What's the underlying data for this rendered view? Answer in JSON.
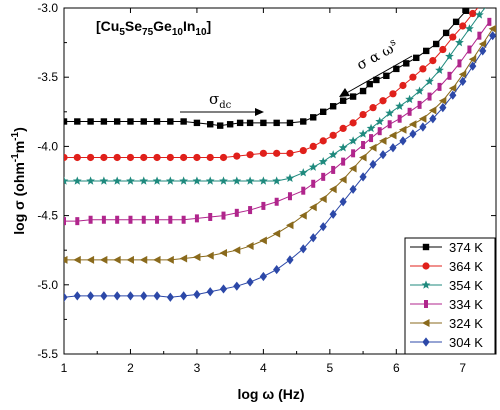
{
  "chart_data": {
    "type": "line",
    "title_parts": [
      "[Cu",
      "5",
      "Se",
      "75",
      "Ge",
      "10",
      "In",
      "10",
      "]"
    ],
    "xlabel": "log ω (Hz)",
    "ylabel_parts": [
      "log σ (ohm",
      "-1",
      "m",
      "-1",
      ")"
    ],
    "xlim": [
      1,
      7.5
    ],
    "ylim": [
      -5.5,
      -3.0
    ],
    "xticks": [
      "1",
      "2",
      "3",
      "4",
      "5",
      "6",
      "7"
    ],
    "yticks": [
      "-3.0",
      "-3.5",
      "-4.0",
      "-4.5",
      "-5.0",
      "-5.5"
    ],
    "annotations": {
      "sigma_dc": {
        "symbol": "σ",
        "subscript": "dc"
      },
      "power_law": {
        "text": "σ α ω",
        "superscript": "s"
      }
    },
    "legend_position": "bottom-right",
    "series": [
      {
        "name": "374 K",
        "color": "#000000",
        "marker": "square",
        "points": [
          [
            1.0,
            -3.82
          ],
          [
            1.2,
            -3.82
          ],
          [
            1.4,
            -3.82
          ],
          [
            1.6,
            -3.82
          ],
          [
            1.8,
            -3.82
          ],
          [
            2.0,
            -3.82
          ],
          [
            2.2,
            -3.82
          ],
          [
            2.4,
            -3.82
          ],
          [
            2.6,
            -3.82
          ],
          [
            2.8,
            -3.82
          ],
          [
            3.0,
            -3.83
          ],
          [
            3.2,
            -3.84
          ],
          [
            3.35,
            -3.85
          ],
          [
            3.5,
            -3.84
          ],
          [
            3.65,
            -3.83
          ],
          [
            3.8,
            -3.83
          ],
          [
            4.0,
            -3.83
          ],
          [
            4.2,
            -3.83
          ],
          [
            4.4,
            -3.83
          ],
          [
            4.6,
            -3.82
          ],
          [
            4.75,
            -3.79
          ],
          [
            4.9,
            -3.75
          ],
          [
            5.05,
            -3.71
          ],
          [
            5.2,
            -3.67
          ],
          [
            5.35,
            -3.64
          ],
          [
            5.5,
            -3.6
          ],
          [
            5.6,
            -3.55
          ],
          [
            5.7,
            -3.52
          ],
          [
            5.85,
            -3.49
          ],
          [
            6.0,
            -3.44
          ],
          [
            6.15,
            -3.4
          ],
          [
            6.3,
            -3.36
          ],
          [
            6.45,
            -3.31
          ],
          [
            6.6,
            -3.26
          ],
          [
            6.75,
            -3.18
          ],
          [
            6.9,
            -3.1
          ],
          [
            7.05,
            -3.02
          ],
          [
            7.2,
            -2.95
          ],
          [
            7.35,
            -2.88
          ],
          [
            7.5,
            -2.81
          ]
        ]
      },
      {
        "name": "364 K",
        "color": "#e0201b",
        "marker": "circle",
        "points": [
          [
            1.0,
            -4.08
          ],
          [
            1.2,
            -4.08
          ],
          [
            1.4,
            -4.08
          ],
          [
            1.6,
            -4.08
          ],
          [
            1.8,
            -4.08
          ],
          [
            2.0,
            -4.08
          ],
          [
            2.2,
            -4.08
          ],
          [
            2.4,
            -4.08
          ],
          [
            2.6,
            -4.08
          ],
          [
            2.8,
            -4.08
          ],
          [
            3.0,
            -4.08
          ],
          [
            3.2,
            -4.08
          ],
          [
            3.4,
            -4.08
          ],
          [
            3.6,
            -4.07
          ],
          [
            3.8,
            -4.06
          ],
          [
            4.0,
            -4.05
          ],
          [
            4.2,
            -4.05
          ],
          [
            4.4,
            -4.05
          ],
          [
            4.6,
            -4.03
          ],
          [
            4.75,
            -4.0
          ],
          [
            4.9,
            -3.96
          ],
          [
            5.05,
            -3.92
          ],
          [
            5.2,
            -3.87
          ],
          [
            5.35,
            -3.83
          ],
          [
            5.5,
            -3.77
          ],
          [
            5.65,
            -3.72
          ],
          [
            5.8,
            -3.67
          ],
          [
            5.95,
            -3.62
          ],
          [
            6.1,
            -3.56
          ],
          [
            6.25,
            -3.5
          ],
          [
            6.4,
            -3.44
          ],
          [
            6.55,
            -3.38
          ],
          [
            6.7,
            -3.3
          ],
          [
            6.85,
            -3.21
          ],
          [
            7.0,
            -3.13
          ],
          [
            7.15,
            -3.04
          ],
          [
            7.3,
            -2.96
          ],
          [
            7.45,
            -2.88
          ]
        ]
      },
      {
        "name": "354 K",
        "color": "#1f8a7e",
        "marker": "star",
        "points": [
          [
            1.0,
            -4.25
          ],
          [
            1.2,
            -4.25
          ],
          [
            1.4,
            -4.25
          ],
          [
            1.6,
            -4.25
          ],
          [
            1.8,
            -4.25
          ],
          [
            2.0,
            -4.25
          ],
          [
            2.2,
            -4.25
          ],
          [
            2.4,
            -4.25
          ],
          [
            2.6,
            -4.25
          ],
          [
            2.8,
            -4.25
          ],
          [
            3.0,
            -4.25
          ],
          [
            3.2,
            -4.25
          ],
          [
            3.4,
            -4.25
          ],
          [
            3.6,
            -4.25
          ],
          [
            3.8,
            -4.25
          ],
          [
            4.0,
            -4.25
          ],
          [
            4.2,
            -4.25
          ],
          [
            4.4,
            -4.23
          ],
          [
            4.6,
            -4.19
          ],
          [
            4.75,
            -4.15
          ],
          [
            4.9,
            -4.11
          ],
          [
            5.05,
            -4.06
          ],
          [
            5.2,
            -4.01
          ],
          [
            5.35,
            -3.96
          ],
          [
            5.5,
            -3.91
          ],
          [
            5.62,
            -3.87
          ],
          [
            5.75,
            -3.82
          ],
          [
            5.9,
            -3.76
          ],
          [
            6.05,
            -3.71
          ],
          [
            6.2,
            -3.66
          ],
          [
            6.35,
            -3.6
          ],
          [
            6.5,
            -3.53
          ],
          [
            6.65,
            -3.45
          ],
          [
            6.8,
            -3.35
          ],
          [
            6.95,
            -3.25
          ],
          [
            7.1,
            -3.15
          ],
          [
            7.25,
            -3.05
          ],
          [
            7.4,
            -2.96
          ]
        ]
      },
      {
        "name": "334 K",
        "color": "#b0258c",
        "marker": "bar",
        "points": [
          [
            1.0,
            -4.54
          ],
          [
            1.2,
            -4.54
          ],
          [
            1.4,
            -4.53
          ],
          [
            1.6,
            -4.53
          ],
          [
            1.8,
            -4.53
          ],
          [
            2.0,
            -4.53
          ],
          [
            2.2,
            -4.53
          ],
          [
            2.4,
            -4.53
          ],
          [
            2.6,
            -4.53
          ],
          [
            2.8,
            -4.53
          ],
          [
            3.0,
            -4.52
          ],
          [
            3.2,
            -4.51
          ],
          [
            3.4,
            -4.5
          ],
          [
            3.6,
            -4.48
          ],
          [
            3.8,
            -4.46
          ],
          [
            4.0,
            -4.43
          ],
          [
            4.2,
            -4.4
          ],
          [
            4.4,
            -4.36
          ],
          [
            4.6,
            -4.32
          ],
          [
            4.75,
            -4.27
          ],
          [
            4.9,
            -4.22
          ],
          [
            5.05,
            -4.17
          ],
          [
            5.2,
            -4.11
          ],
          [
            5.35,
            -4.05
          ],
          [
            5.5,
            -3.99
          ],
          [
            5.62,
            -3.94
          ],
          [
            5.75,
            -3.89
          ],
          [
            5.9,
            -3.84
          ],
          [
            6.05,
            -3.8
          ],
          [
            6.2,
            -3.75
          ],
          [
            6.35,
            -3.7
          ],
          [
            6.5,
            -3.64
          ],
          [
            6.65,
            -3.57
          ],
          [
            6.8,
            -3.49
          ],
          [
            6.95,
            -3.4
          ],
          [
            7.1,
            -3.3
          ],
          [
            7.25,
            -3.2
          ],
          [
            7.4,
            -3.1
          ]
        ]
      },
      {
        "name": "324 K",
        "color": "#8a6a1c",
        "marker": "triangle-left",
        "points": [
          [
            1.0,
            -4.82
          ],
          [
            1.2,
            -4.82
          ],
          [
            1.4,
            -4.82
          ],
          [
            1.6,
            -4.82
          ],
          [
            1.8,
            -4.82
          ],
          [
            2.0,
            -4.82
          ],
          [
            2.2,
            -4.82
          ],
          [
            2.4,
            -4.82
          ],
          [
            2.6,
            -4.82
          ],
          [
            2.8,
            -4.81
          ],
          [
            3.0,
            -4.8
          ],
          [
            3.2,
            -4.79
          ],
          [
            3.4,
            -4.77
          ],
          [
            3.6,
            -4.75
          ],
          [
            3.8,
            -4.72
          ],
          [
            4.0,
            -4.68
          ],
          [
            4.2,
            -4.63
          ],
          [
            4.4,
            -4.57
          ],
          [
            4.6,
            -4.5
          ],
          [
            4.75,
            -4.44
          ],
          [
            4.9,
            -4.38
          ],
          [
            5.05,
            -4.31
          ],
          [
            5.2,
            -4.24
          ],
          [
            5.35,
            -4.16
          ],
          [
            5.5,
            -4.08
          ],
          [
            5.65,
            -4.01
          ],
          [
            5.8,
            -3.96
          ],
          [
            5.95,
            -3.92
          ],
          [
            6.1,
            -3.88
          ],
          [
            6.25,
            -3.84
          ],
          [
            6.4,
            -3.8
          ],
          [
            6.55,
            -3.74
          ],
          [
            6.7,
            -3.67
          ],
          [
            6.85,
            -3.58
          ],
          [
            7.0,
            -3.48
          ],
          [
            7.15,
            -3.37
          ],
          [
            7.3,
            -3.26
          ],
          [
            7.45,
            -3.15
          ]
        ]
      },
      {
        "name": "304 K",
        "color": "#2c48a8",
        "marker": "diamond",
        "points": [
          [
            1.0,
            -5.09
          ],
          [
            1.2,
            -5.08
          ],
          [
            1.4,
            -5.08
          ],
          [
            1.6,
            -5.08
          ],
          [
            1.8,
            -5.08
          ],
          [
            2.0,
            -5.08
          ],
          [
            2.2,
            -5.08
          ],
          [
            2.4,
            -5.08
          ],
          [
            2.6,
            -5.09
          ],
          [
            2.8,
            -5.08
          ],
          [
            3.0,
            -5.07
          ],
          [
            3.2,
            -5.05
          ],
          [
            3.4,
            -5.03
          ],
          [
            3.6,
            -5.01
          ],
          [
            3.8,
            -4.98
          ],
          [
            4.0,
            -4.94
          ],
          [
            4.2,
            -4.89
          ],
          [
            4.4,
            -4.82
          ],
          [
            4.6,
            -4.74
          ],
          [
            4.75,
            -4.66
          ],
          [
            4.9,
            -4.58
          ],
          [
            5.05,
            -4.49
          ],
          [
            5.2,
            -4.4
          ],
          [
            5.35,
            -4.31
          ],
          [
            5.5,
            -4.22
          ],
          [
            5.65,
            -4.13
          ],
          [
            5.8,
            -4.06
          ],
          [
            5.95,
            -4.01
          ],
          [
            6.1,
            -3.96
          ],
          [
            6.25,
            -3.91
          ],
          [
            6.4,
            -3.86
          ],
          [
            6.55,
            -3.8
          ],
          [
            6.7,
            -3.72
          ],
          [
            6.85,
            -3.63
          ],
          [
            7.0,
            -3.53
          ],
          [
            7.15,
            -3.42
          ],
          [
            7.3,
            -3.31
          ],
          [
            7.45,
            -3.2
          ]
        ]
      }
    ]
  }
}
